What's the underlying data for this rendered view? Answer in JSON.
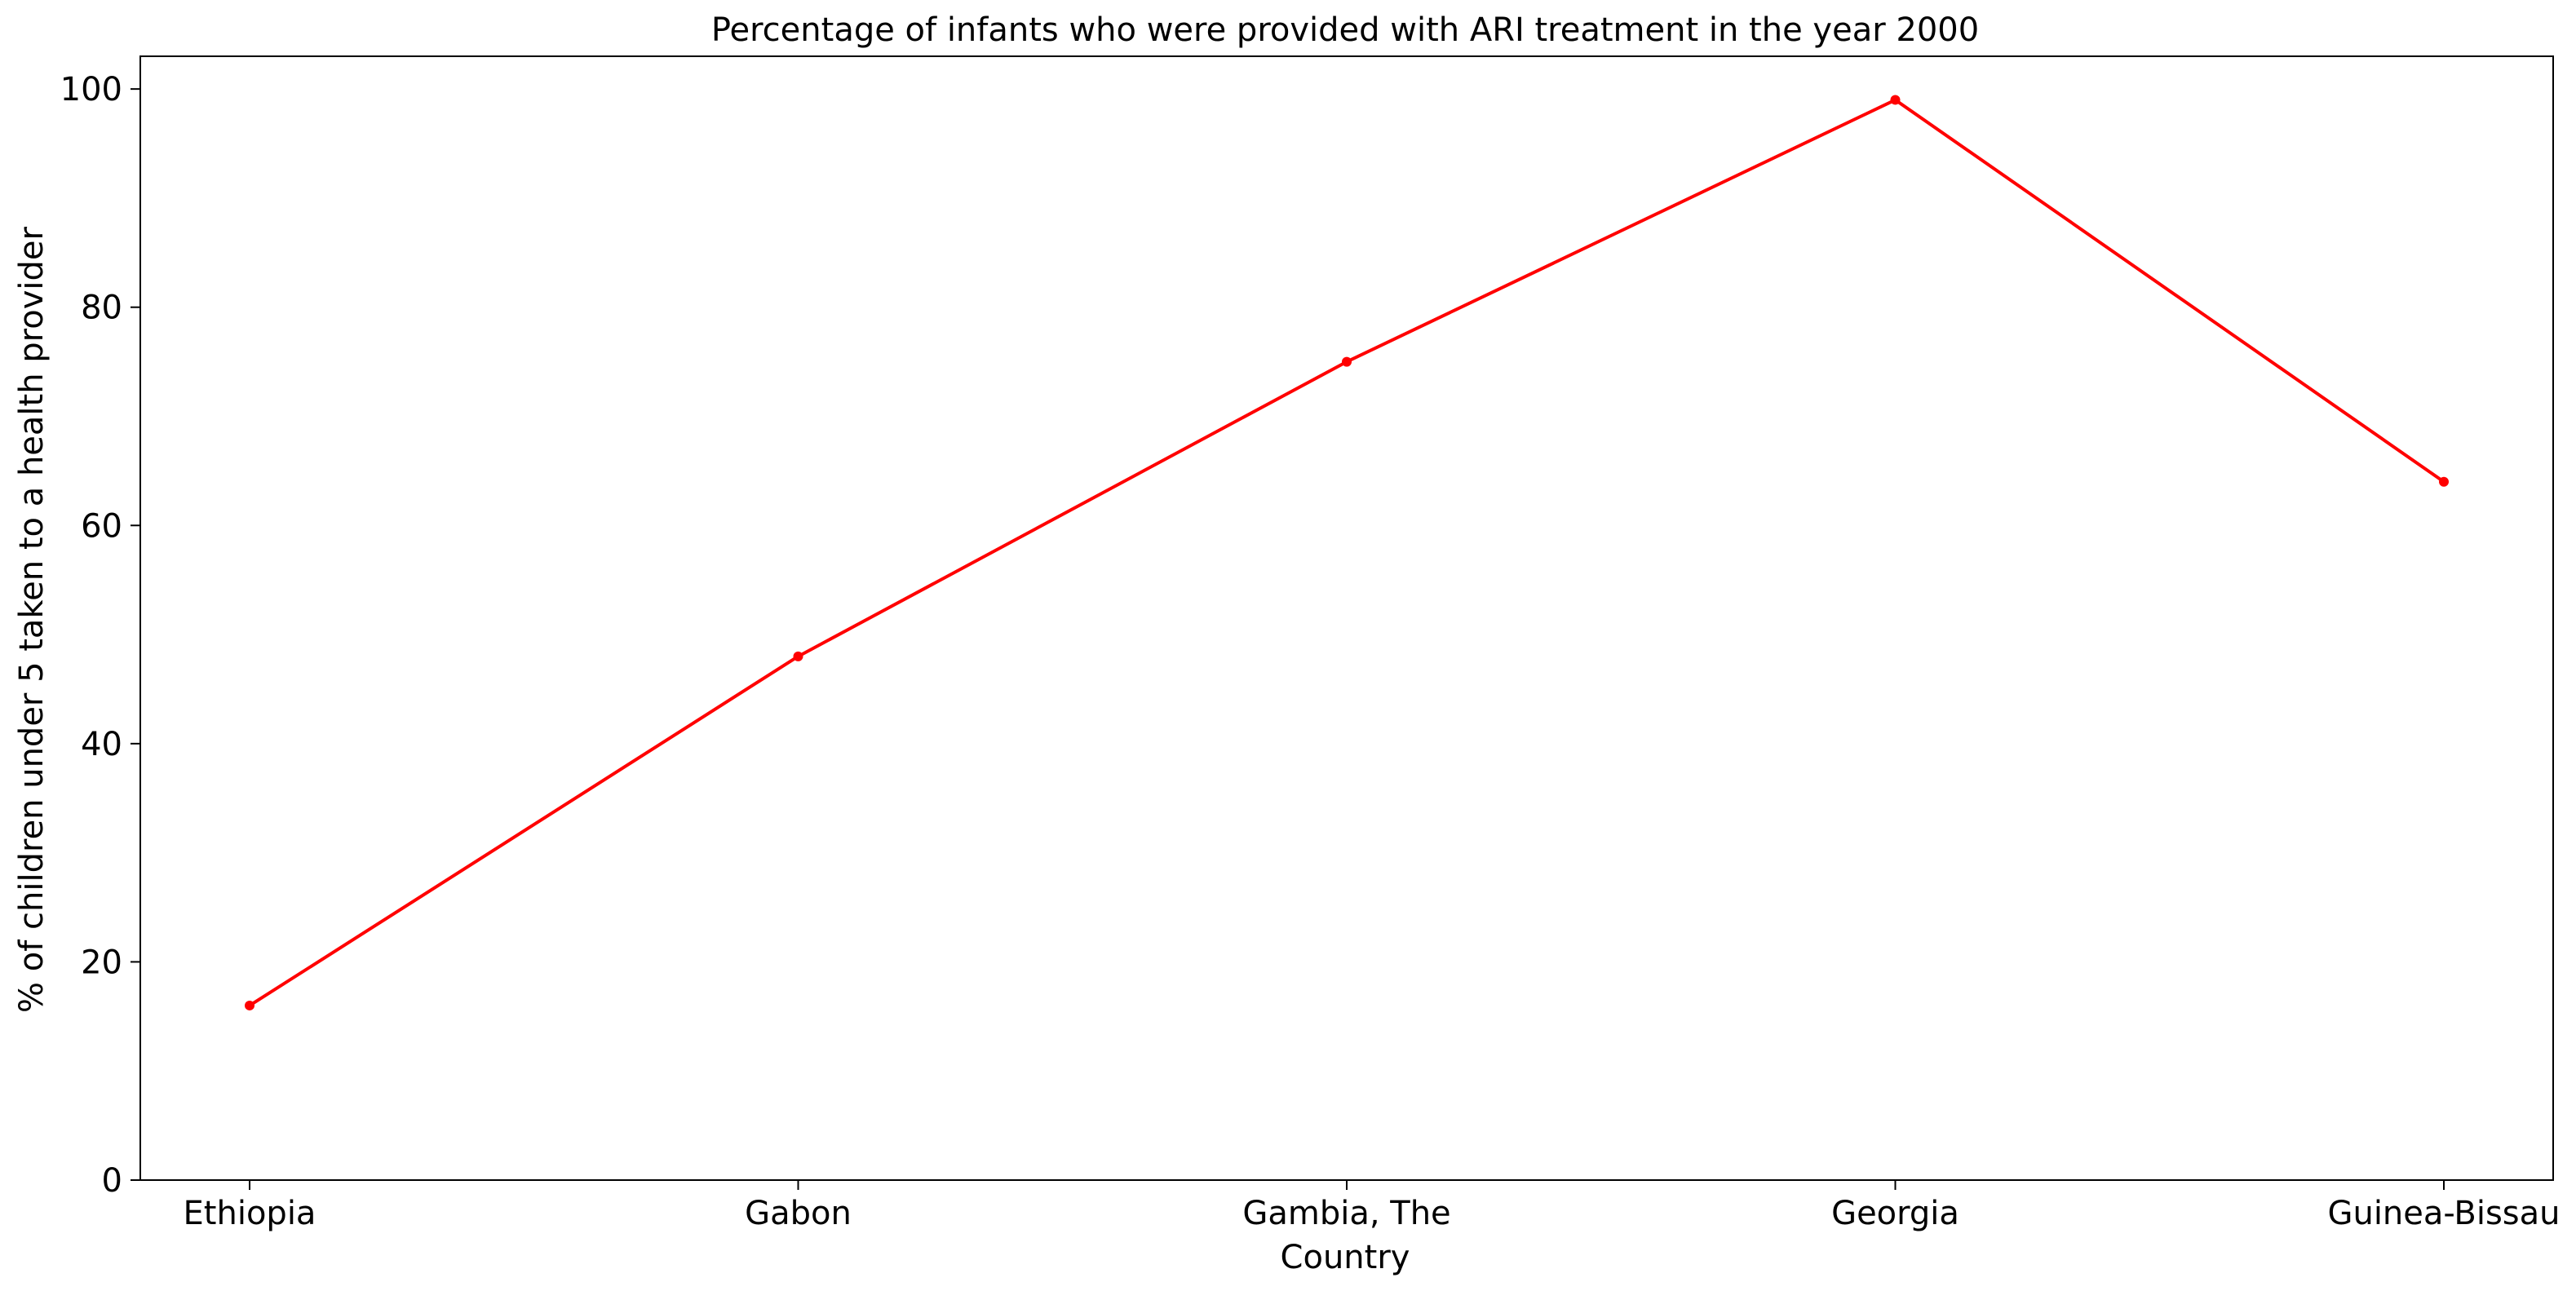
{
  "chart_data": {
    "type": "line",
    "title": "Percentage of infants who were provided with ARI treatment in the year 2000",
    "xlabel": "Country",
    "ylabel": "% of children under 5 taken to a health provider",
    "categories": [
      "Ethiopia",
      "Gabon",
      "Gambia, The",
      "Georgia",
      "Guinea-Bissau"
    ],
    "series": [
      {
        "values": [
          16,
          48,
          75,
          99,
          64
        ],
        "color": "#ff0000",
        "marker": "circle"
      }
    ],
    "ylim": [
      0,
      103
    ],
    "yticks": [
      0,
      20,
      40,
      60,
      80,
      100
    ],
    "grid": false,
    "legend": "none"
  }
}
